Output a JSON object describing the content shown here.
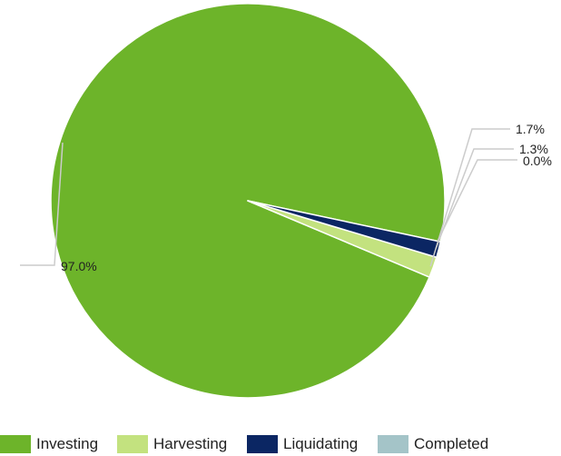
{
  "chart_data": {
    "type": "pie",
    "title": "",
    "slices": [
      {
        "name": "Investing",
        "value": 97.0,
        "label": "97.0%",
        "color": "#6db42a"
      },
      {
        "name": "Harvesting",
        "value": 1.7,
        "label": "1.7%",
        "color": "#c3e27f"
      },
      {
        "name": "Liquidating",
        "value": 1.3,
        "label": "1.3%",
        "color": "#0b2663"
      },
      {
        "name": "Completed",
        "value": 0.0,
        "label": "0.0%",
        "color": "#a4c4c8"
      }
    ],
    "legend_position": "bottom",
    "label_color": "#222222",
    "leader_line_color": "#cccccc",
    "slice_border_color": "#ffffff"
  }
}
